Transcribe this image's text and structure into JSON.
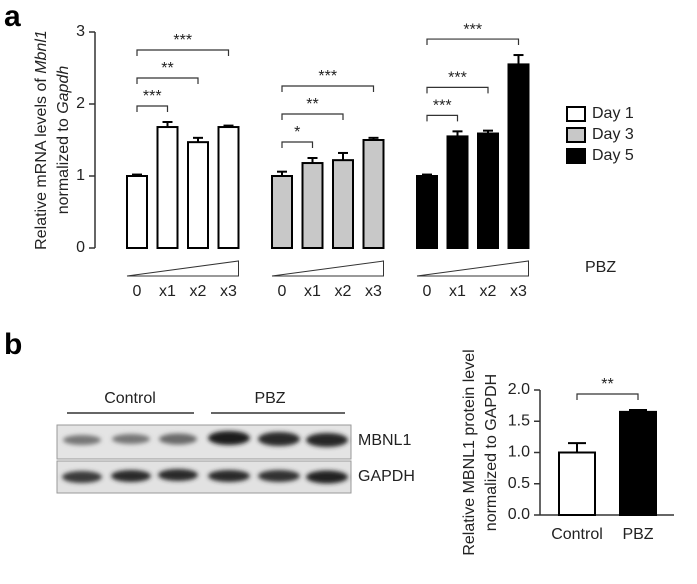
{
  "panel_labels": [
    "a",
    "b"
  ],
  "blot": {
    "groups": [
      "Control",
      "PBZ"
    ],
    "rows": [
      "MBNL1",
      "GAPDH"
    ]
  },
  "chart_data": [
    {
      "type": "bar",
      "ylabel": [
        [
          "Relative mRNA levels of ",
          "Mbnl1"
        ],
        [
          "normalized to ",
          "Gapdh"
        ]
      ],
      "xlabel": "PBZ",
      "categories": [
        "0",
        "x1",
        "x2",
        "x3"
      ],
      "series": [
        {
          "name": "Day 1",
          "color": "#ffffff",
          "values": [
            1.0,
            1.68,
            1.47,
            1.68
          ],
          "errors": [
            0.02,
            0.07,
            0.06,
            0.02
          ],
          "significance": [
            null,
            "***",
            "**",
            "***"
          ]
        },
        {
          "name": "Day 3",
          "color": "#c8c8c8",
          "values": [
            1.0,
            1.18,
            1.22,
            1.5
          ],
          "errors": [
            0.06,
            0.07,
            0.1,
            0.03
          ],
          "significance": [
            null,
            "*",
            "**",
            "***"
          ]
        },
        {
          "name": "Day 5",
          "color": "#000000",
          "values": [
            1.0,
            1.55,
            1.59,
            2.55
          ],
          "errors": [
            0.02,
            0.07,
            0.04,
            0.13
          ],
          "significance": [
            null,
            "***",
            "***",
            "***"
          ]
        }
      ],
      "ylim": [
        0,
        3
      ],
      "yticks": [
        0,
        1,
        2,
        3
      ]
    },
    {
      "type": "bar",
      "ylabel": [
        [
          "Relative MBNL1 protein level"
        ],
        [
          "normalized to GAPDH"
        ]
      ],
      "categories": [
        "Control",
        "PBZ"
      ],
      "series": [
        {
          "colors": [
            "#ffffff",
            "#000000"
          ],
          "values": [
            1.0,
            1.65
          ],
          "errors": [
            0.15,
            0.03
          ],
          "significance": [
            null,
            "**"
          ]
        }
      ],
      "ylim": [
        0,
        2
      ],
      "yticks": [
        {
          "value": 0,
          "label": "0.0"
        },
        {
          "value": 0.5,
          "label": "0.5"
        },
        {
          "value": 1,
          "label": "1.0"
        },
        {
          "value": 1.5,
          "label": "1.5"
        },
        {
          "value": 2,
          "label": "2.0"
        }
      ]
    }
  ]
}
